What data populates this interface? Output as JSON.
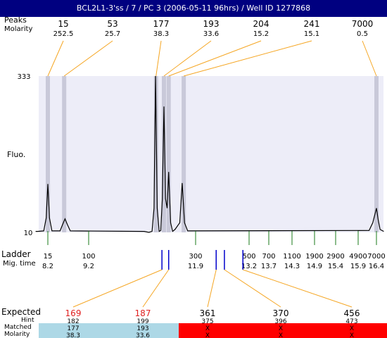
{
  "title": "BCL2L1-3'ss / 7 / PC 3 (2006-05-11 96hrs) / Well ID 1277868",
  "colors": {
    "title_bg": "#000080",
    "plot_bg": "#ededf8",
    "band": "#c9c9d9",
    "leader": "#f5a623",
    "ladder_tick": "#1a7a1a",
    "marker_tick": "#0000cc",
    "expected_red": "#e02020",
    "matched_ok": "#add8e6",
    "matched_fail": "#ff0000"
  },
  "labels": {
    "peaks": "Peaks",
    "molarity": "Molarity",
    "fluo": "Fluo.",
    "ladder": "Ladder",
    "mig_time": "Mig. time",
    "expected": "Expected",
    "hint": "Hint",
    "matched": "Matched",
    "molarity_bottom": "Molarity"
  },
  "chart_data": {
    "type": "line",
    "ylabel": "Fluo.",
    "ylim": [
      10,
      333
    ],
    "peaks": [
      {
        "size": "15",
        "molarity": "252.5",
        "mig_time": 8.2
      },
      {
        "size": "53",
        "molarity": "25.7",
        "mig_time": 8.6
      },
      {
        "size": "177",
        "molarity": "38.3",
        "mig_time": 10.9
      },
      {
        "size": "193",
        "molarity": "33.6",
        "mig_time": 11.1
      },
      {
        "size": "204",
        "molarity": "15.2",
        "mig_time": 11.22
      },
      {
        "size": "241",
        "molarity": "15.1",
        "mig_time": 11.6
      },
      {
        "size": "7000",
        "molarity": "0.5",
        "mig_time": 16.4
      }
    ],
    "ladder": [
      {
        "size": "15",
        "time": 8.2
      },
      {
        "size": "100",
        "time": 9.2
      },
      {
        "size": "300",
        "time": 11.9
      },
      {
        "size": "500",
        "time": 13.2
      },
      {
        "size": "700",
        "time": 13.7
      },
      {
        "size": "1100",
        "time": 14.3
      },
      {
        "size": "1900",
        "time": 14.9
      },
      {
        "size": "2900",
        "time": 15.4
      },
      {
        "size": "4900",
        "time": 15.9
      },
      {
        "size": "7000",
        "time": 16.4
      }
    ],
    "trace": [
      [
        7.95,
        12
      ],
      [
        8.1,
        13
      ],
      [
        8.16,
        40
      ],
      [
        8.2,
        110
      ],
      [
        8.24,
        40
      ],
      [
        8.3,
        13
      ],
      [
        8.5,
        13
      ],
      [
        8.56,
        26
      ],
      [
        8.62,
        38
      ],
      [
        8.68,
        26
      ],
      [
        8.75,
        13
      ],
      [
        10.6,
        12
      ],
      [
        10.72,
        10
      ],
      [
        10.8,
        12
      ],
      [
        10.85,
        60
      ],
      [
        10.89,
        333
      ],
      [
        10.93,
        60
      ],
      [
        10.98,
        12
      ],
      [
        11.02,
        14
      ],
      [
        11.06,
        80
      ],
      [
        11.1,
        270
      ],
      [
        11.14,
        80
      ],
      [
        11.18,
        60
      ],
      [
        11.22,
        135
      ],
      [
        11.27,
        30
      ],
      [
        11.32,
        12
      ],
      [
        11.38,
        16
      ],
      [
        11.5,
        30
      ],
      [
        11.56,
        112
      ],
      [
        11.62,
        30
      ],
      [
        11.7,
        13
      ],
      [
        16.2,
        14
      ],
      [
        16.3,
        30
      ],
      [
        16.4,
        60
      ],
      [
        16.45,
        35
      ],
      [
        16.5,
        16
      ]
    ],
    "expected": [
      {
        "value": "169",
        "hint": "182",
        "matched": "177",
        "molarity": "38.3",
        "highlight": true,
        "mig_time": 11.05
      },
      {
        "value": "187",
        "hint": "199",
        "matched": "193",
        "molarity": "33.6",
        "highlight": true,
        "mig_time": 11.22
      },
      {
        "value": "361",
        "hint": "375",
        "matched": "X",
        "molarity": "X",
        "highlight": false,
        "mig_time": 12.4
      },
      {
        "value": "370",
        "hint": "396",
        "matched": "X",
        "molarity": "X",
        "highlight": false,
        "mig_time": 12.6
      },
      {
        "value": "456",
        "hint": "473",
        "matched": "X",
        "molarity": "X",
        "highlight": false,
        "mig_time": 13.05
      }
    ]
  }
}
